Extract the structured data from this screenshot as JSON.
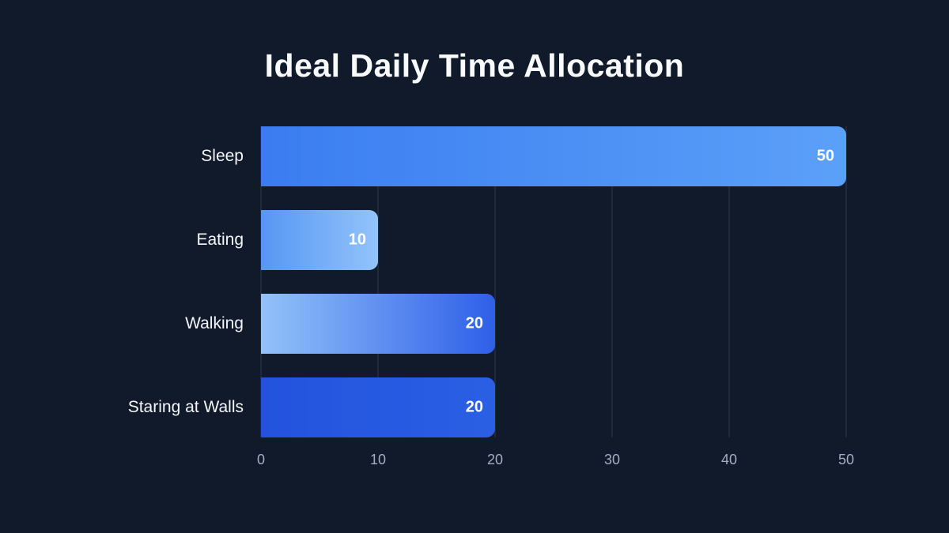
{
  "title": "Ideal Daily Time Allocation",
  "colors": {
    "background": "#111a2b",
    "title_text": "#f8fafc",
    "category_label": "#f3f6fa",
    "value_label": "#ffffff",
    "tick_label": "#a3aec0",
    "gridline": "rgba(148,163,184,0.22)"
  },
  "chart_data": {
    "type": "bar",
    "orientation": "horizontal",
    "title": "Ideal Daily Time Allocation",
    "categories": [
      "Sleep",
      "Eating",
      "Walking",
      "Staring at Walls"
    ],
    "values": [
      50,
      10,
      20,
      20
    ],
    "value_labels": [
      "50",
      "10",
      "20",
      "20"
    ],
    "xlabel": "",
    "ylabel": "",
    "xlim": [
      0,
      50
    ],
    "x_ticks": [
      0,
      10,
      20,
      30,
      40,
      50
    ],
    "grid": "vertical-only",
    "legend": false,
    "bar_gradients": [
      [
        "#3b7df1",
        "#5ba0f8"
      ],
      [
        "#5697f3",
        "#92c3fb"
      ],
      [
        "#93c2f9",
        "#2e5fe8"
      ],
      [
        "#2353de",
        "#2a5fe4"
      ]
    ]
  }
}
